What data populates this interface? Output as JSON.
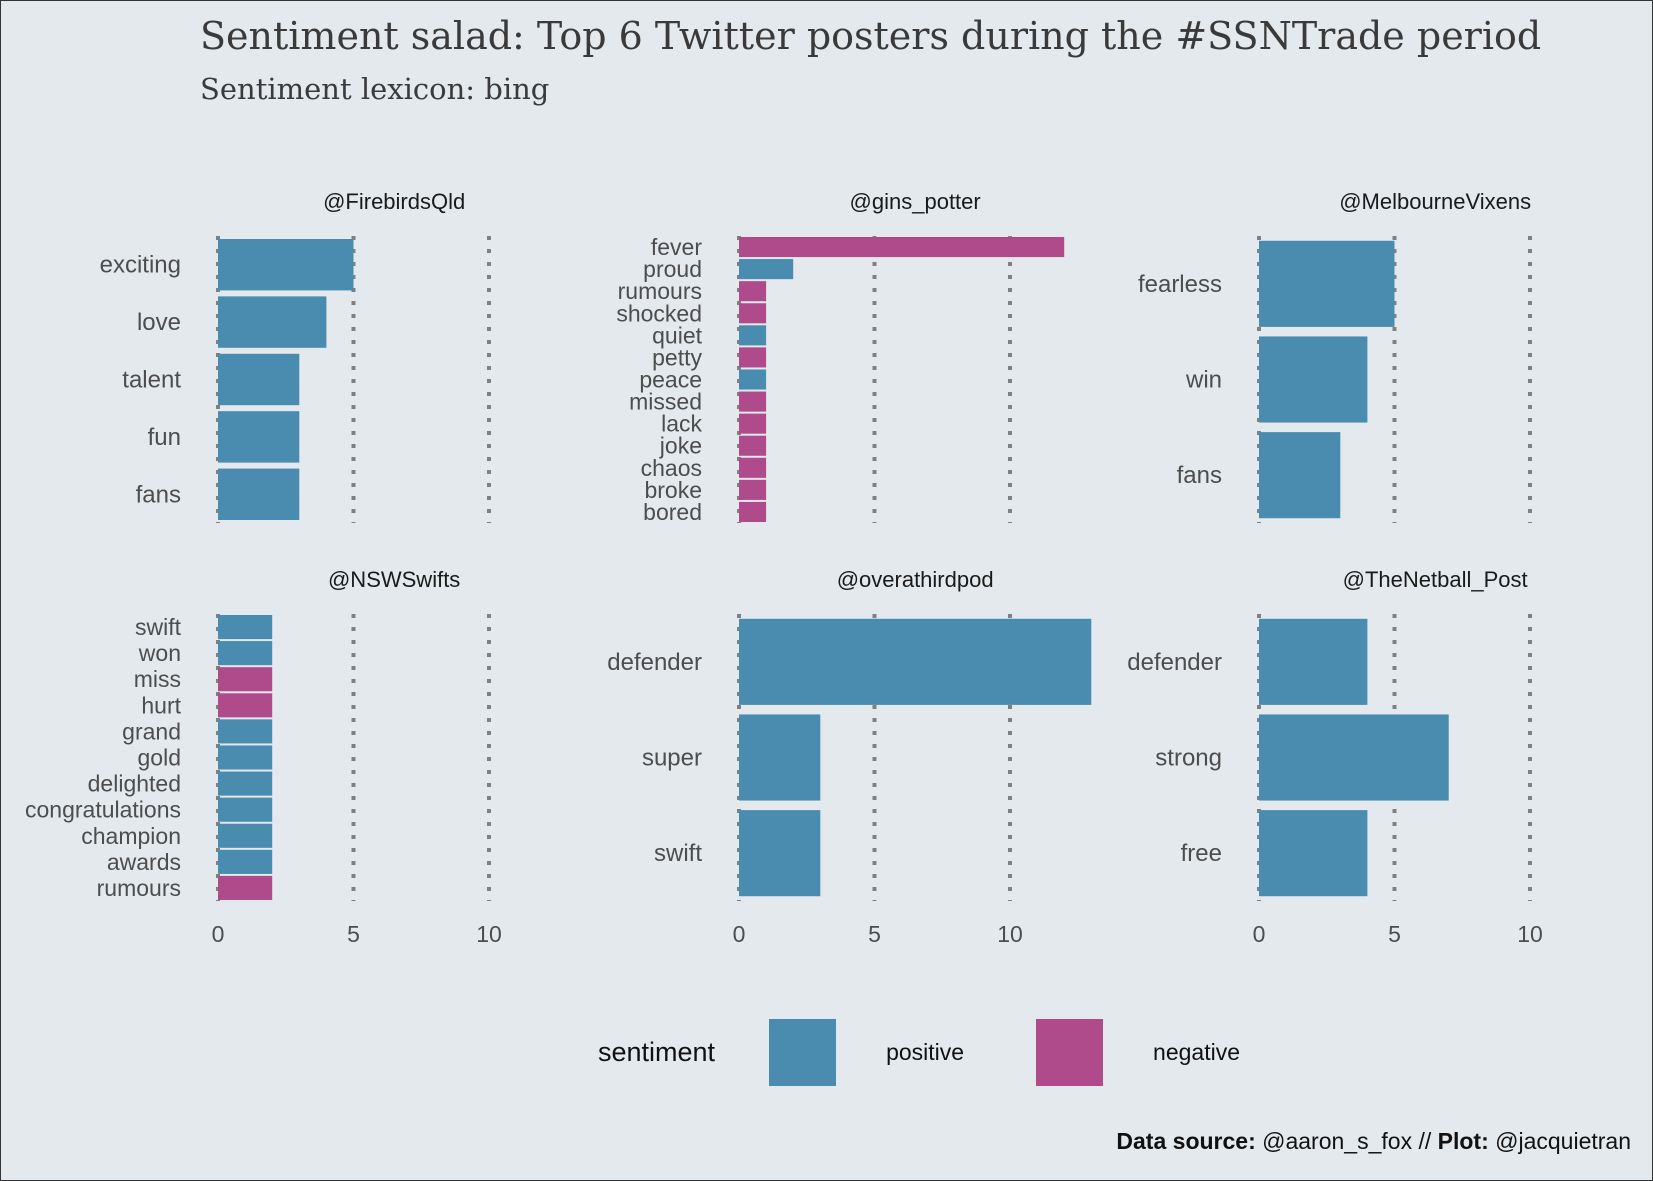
{
  "title": "Sentiment salad: Top 6 Twitter posters during the #SSNTrade period",
  "subtitle": "Sentiment lexicon: bing",
  "legend": {
    "title": "sentiment",
    "positive_label": "positive",
    "negative_label": "negative"
  },
  "caption": {
    "source_label": "Data source:",
    "source_value": " @aaron_s_fox // ",
    "plot_label": "Plot:",
    "plot_value": " @jacquietran"
  },
  "colors": {
    "positive": "#4a8bb0",
    "negative": "#b04b8b",
    "background": "#e4e9ed",
    "grid": "#808080",
    "text": "#4d4d4d"
  },
  "chart_data": {
    "type": "bar",
    "orientation": "horizontal",
    "facet_layout": "2x3",
    "xlim": [
      0,
      13
    ],
    "x_ticks": [
      0,
      5,
      10
    ],
    "grid": "vertical dotted",
    "legend_position": "bottom",
    "panels": [
      {
        "title": "@FirebirdsQld",
        "bars": [
          {
            "label": "exciting",
            "value": 5,
            "sentiment": "positive"
          },
          {
            "label": "love",
            "value": 4,
            "sentiment": "positive"
          },
          {
            "label": "talent",
            "value": 3,
            "sentiment": "positive"
          },
          {
            "label": "fun",
            "value": 3,
            "sentiment": "positive"
          },
          {
            "label": "fans",
            "value": 3,
            "sentiment": "positive"
          }
        ]
      },
      {
        "title": "@gins_potter",
        "bars": [
          {
            "label": "fever",
            "value": 12,
            "sentiment": "negative"
          },
          {
            "label": "proud",
            "value": 2,
            "sentiment": "positive"
          },
          {
            "label": "rumours",
            "value": 1,
            "sentiment": "negative"
          },
          {
            "label": "shocked",
            "value": 1,
            "sentiment": "negative"
          },
          {
            "label": "quiet",
            "value": 1,
            "sentiment": "positive"
          },
          {
            "label": "petty",
            "value": 1,
            "sentiment": "negative"
          },
          {
            "label": "peace",
            "value": 1,
            "sentiment": "positive"
          },
          {
            "label": "missed",
            "value": 1,
            "sentiment": "negative"
          },
          {
            "label": "lack",
            "value": 1,
            "sentiment": "negative"
          },
          {
            "label": "joke",
            "value": 1,
            "sentiment": "negative"
          },
          {
            "label": "chaos",
            "value": 1,
            "sentiment": "negative"
          },
          {
            "label": "broke",
            "value": 1,
            "sentiment": "negative"
          },
          {
            "label": "bored",
            "value": 1,
            "sentiment": "negative"
          }
        ]
      },
      {
        "title": "@MelbourneVixens",
        "bars": [
          {
            "label": "fearless",
            "value": 5,
            "sentiment": "positive"
          },
          {
            "label": "win",
            "value": 4,
            "sentiment": "positive"
          },
          {
            "label": "fans",
            "value": 3,
            "sentiment": "positive"
          }
        ]
      },
      {
        "title": "@NSWSwifts",
        "bars": [
          {
            "label": "swift",
            "value": 2,
            "sentiment": "positive"
          },
          {
            "label": "won",
            "value": 2,
            "sentiment": "positive"
          },
          {
            "label": "miss",
            "value": 2,
            "sentiment": "negative"
          },
          {
            "label": "hurt",
            "value": 2,
            "sentiment": "negative"
          },
          {
            "label": "grand",
            "value": 2,
            "sentiment": "positive"
          },
          {
            "label": "gold",
            "value": 2,
            "sentiment": "positive"
          },
          {
            "label": "delighted",
            "value": 2,
            "sentiment": "positive"
          },
          {
            "label": "congratulations",
            "value": 2,
            "sentiment": "positive"
          },
          {
            "label": "champion",
            "value": 2,
            "sentiment": "positive"
          },
          {
            "label": "awards",
            "value": 2,
            "sentiment": "positive"
          },
          {
            "label": "rumours",
            "value": 2,
            "sentiment": "negative"
          }
        ]
      },
      {
        "title": "@overathirdpod",
        "bars": [
          {
            "label": "defender",
            "value": 13,
            "sentiment": "positive"
          },
          {
            "label": "super",
            "value": 3,
            "sentiment": "positive"
          },
          {
            "label": "swift",
            "value": 3,
            "sentiment": "positive"
          }
        ]
      },
      {
        "title": "@TheNetball_Post",
        "bars": [
          {
            "label": "defender",
            "value": 4,
            "sentiment": "positive"
          },
          {
            "label": "strong",
            "value": 7,
            "sentiment": "positive"
          },
          {
            "label": "free",
            "value": 4,
            "sentiment": "positive"
          }
        ]
      }
    ]
  }
}
